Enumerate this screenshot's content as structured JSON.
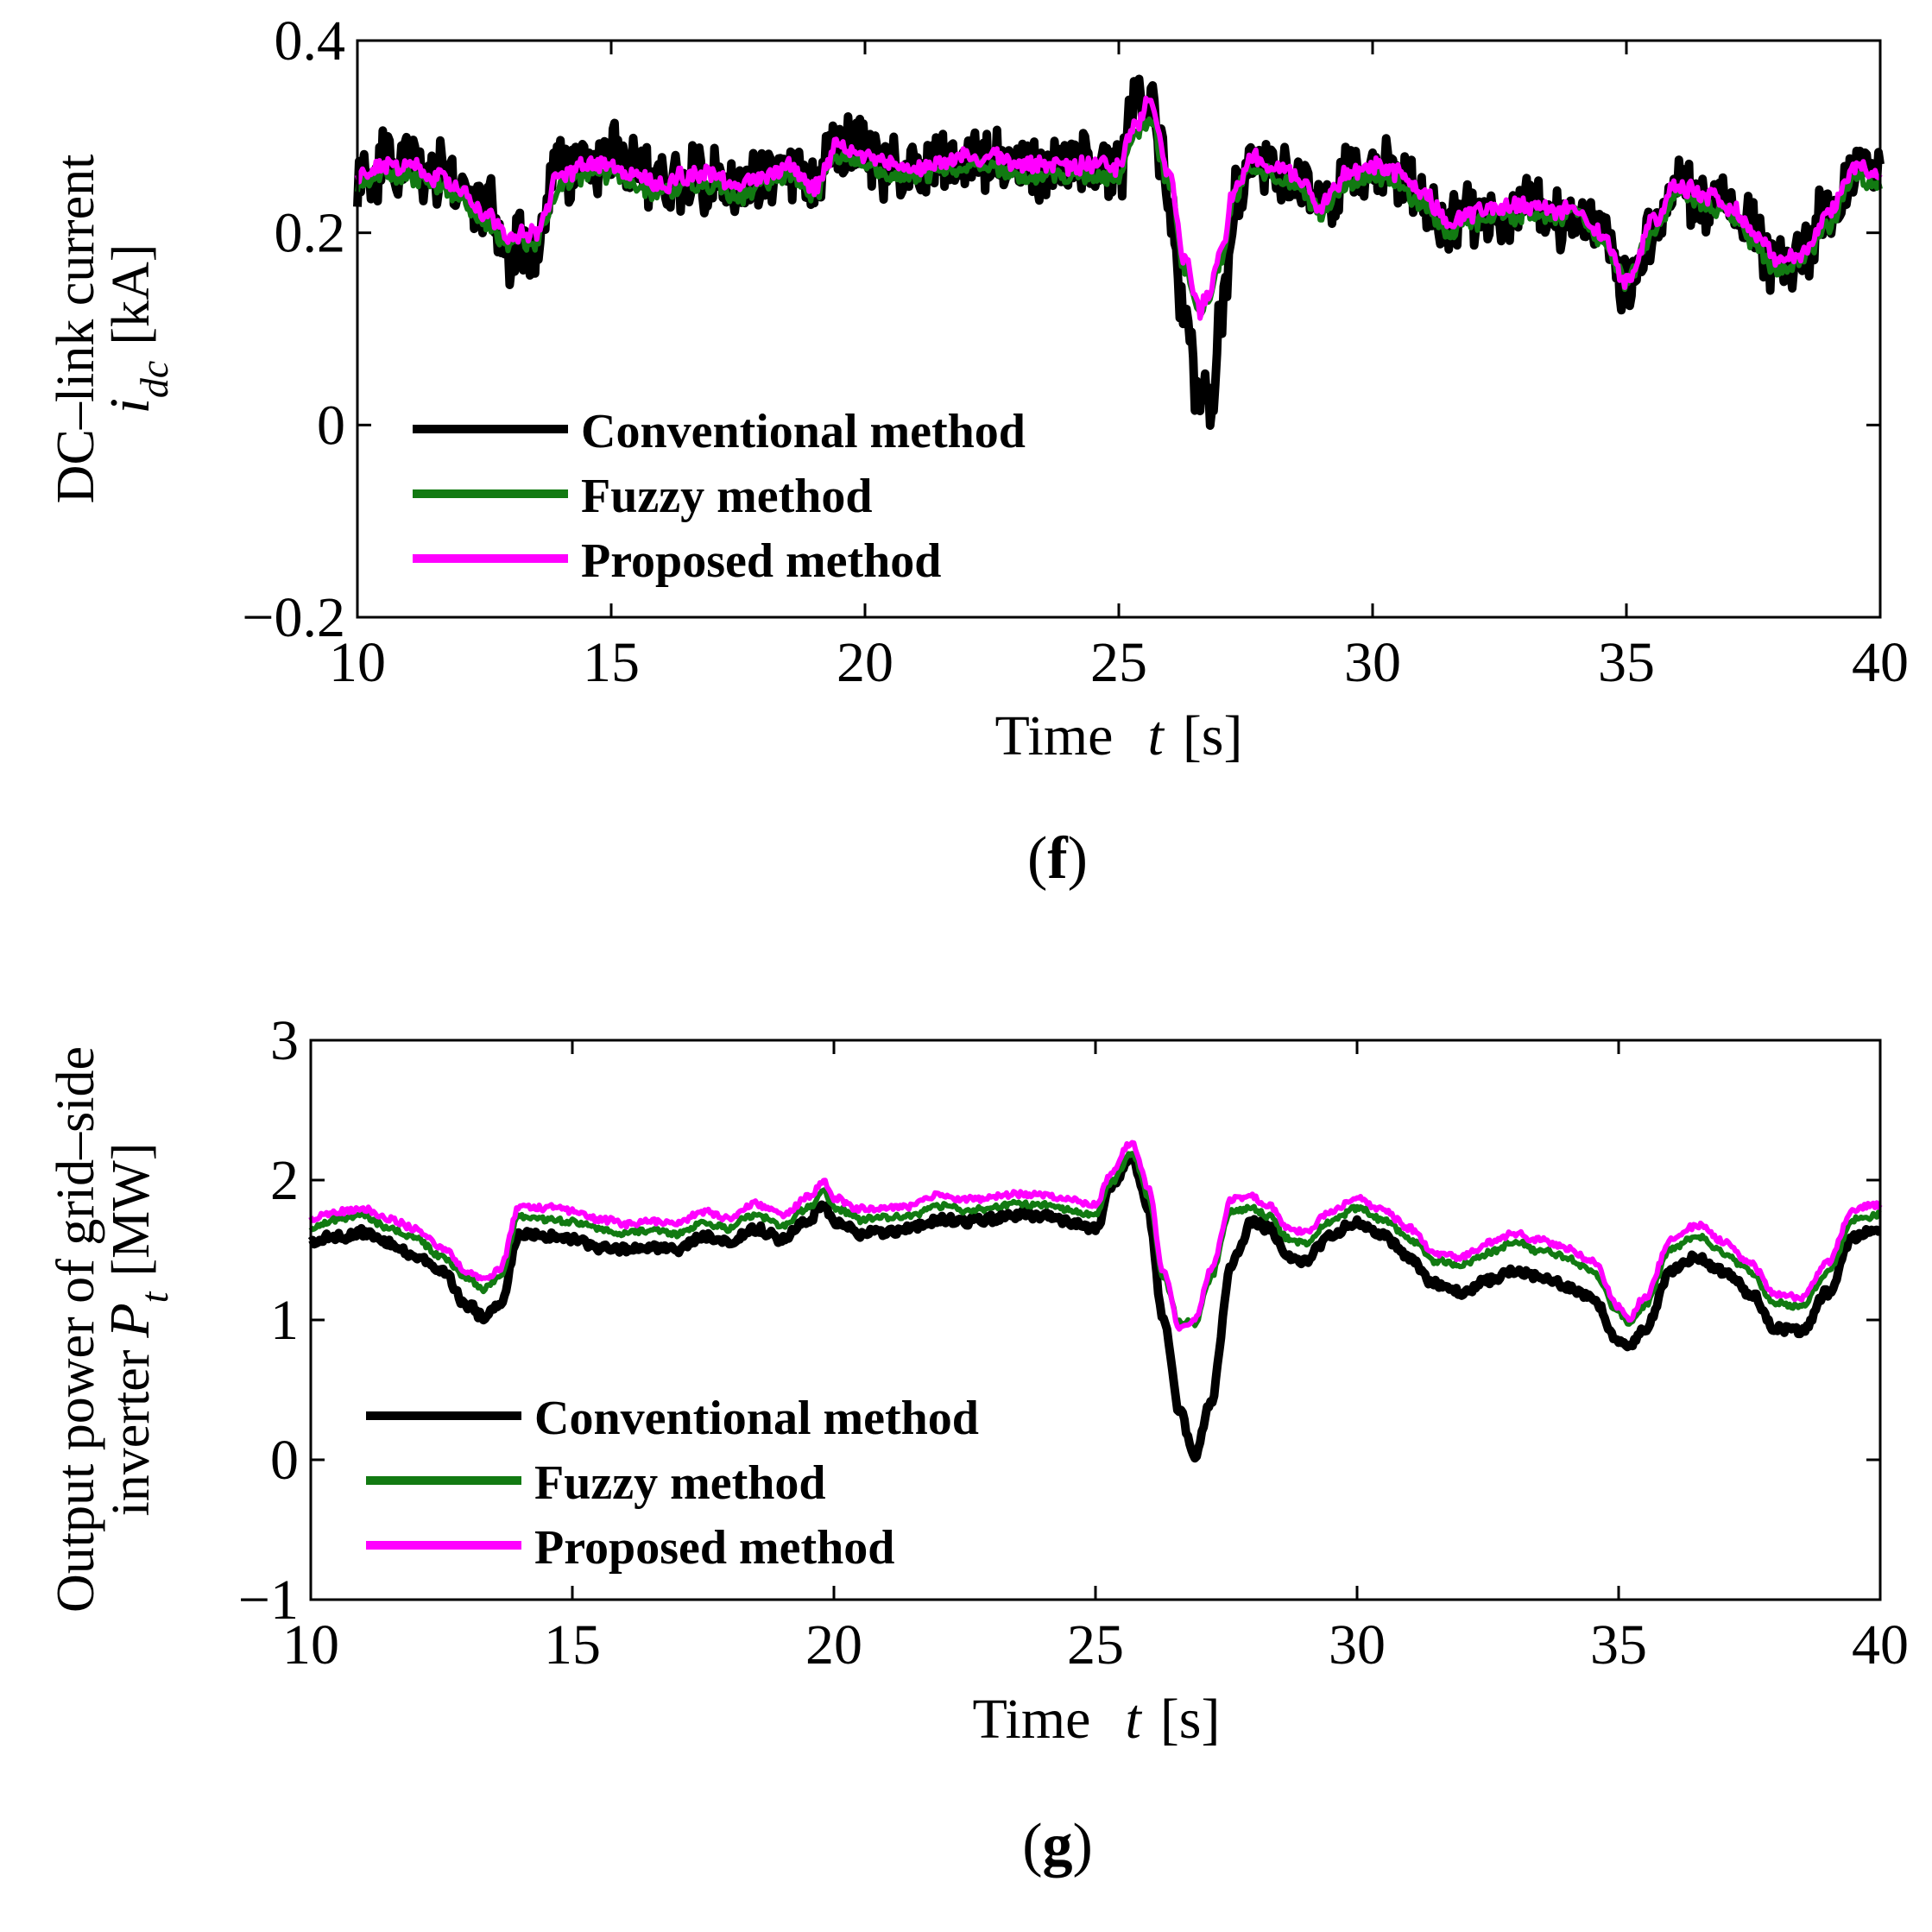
{
  "colors": {
    "conventional": "#000000",
    "fuzzy": "#127a12",
    "proposed": "#ff00ff"
  },
  "chart_data": [
    {
      "type": "line",
      "panel_label": "(f)",
      "panel_letter": "f",
      "xlabel_prefix": "Time",
      "xlabel_var": "t",
      "xlabel_unit": "[s]",
      "ylabel_line1": "DC–link current",
      "ylabel_var": "i",
      "ylabel_sub": "dc",
      "ylabel_unit": "[kA]",
      "xlim": [
        10,
        40
      ],
      "ylim": [
        -0.2,
        0.4
      ],
      "xticks": [
        10,
        15,
        20,
        25,
        30,
        35,
        40
      ],
      "yticks": [
        -0.2,
        0,
        0.2,
        0.4
      ],
      "xtick_labels": [
        "10",
        "15",
        "20",
        "25",
        "30",
        "35",
        "40"
      ],
      "ytick_labels": [
        "−0.2",
        "0",
        "0.2",
        "0.4"
      ],
      "legend_position": "lower-left",
      "x": [
        10,
        10.5,
        11,
        11.5,
        12,
        12.5,
        13,
        13.5,
        14,
        14.5,
        15,
        15.5,
        16,
        16.5,
        17,
        17.5,
        18,
        18.5,
        19,
        19.5,
        20,
        20.5,
        21,
        21.5,
        22,
        22.5,
        23,
        23.5,
        24,
        24.5,
        25,
        25.3,
        25.6,
        26,
        26.3,
        26.6,
        26.8,
        27,
        27.3,
        27.6,
        28,
        28.5,
        29,
        29.5,
        30,
        30.5,
        31,
        31.5,
        32,
        32.5,
        33,
        33.5,
        34,
        34.5,
        35,
        35.5,
        36,
        36.5,
        37,
        37.5,
        38,
        38.5,
        39,
        39.5,
        40
      ],
      "series": [
        {
          "name": "Conventional method",
          "color_key": "conventional",
          "noise": 0.022,
          "values": [
            0.26,
            0.27,
            0.27,
            0.26,
            0.25,
            0.22,
            0.18,
            0.18,
            0.26,
            0.28,
            0.28,
            0.27,
            0.25,
            0.26,
            0.26,
            0.25,
            0.26,
            0.27,
            0.25,
            0.29,
            0.29,
            0.27,
            0.27,
            0.27,
            0.28,
            0.28,
            0.27,
            0.27,
            0.27,
            0.27,
            0.27,
            0.32,
            0.34,
            0.24,
            0.12,
            0.02,
            0.02,
            0.1,
            0.24,
            0.27,
            0.27,
            0.26,
            0.23,
            0.26,
            0.27,
            0.26,
            0.24,
            0.21,
            0.22,
            0.22,
            0.23,
            0.22,
            0.22,
            0.2,
            0.14,
            0.2,
            0.24,
            0.24,
            0.23,
            0.2,
            0.16,
            0.18,
            0.22,
            0.27,
            0.27
          ]
        },
        {
          "name": "Fuzzy method",
          "color_key": "fuzzy",
          "noise": 0.006,
          "values": [
            0.25,
            0.26,
            0.26,
            0.25,
            0.24,
            0.21,
            0.19,
            0.19,
            0.25,
            0.26,
            0.26,
            0.25,
            0.24,
            0.25,
            0.25,
            0.24,
            0.25,
            0.26,
            0.24,
            0.28,
            0.27,
            0.26,
            0.26,
            0.26,
            0.27,
            0.27,
            0.26,
            0.26,
            0.26,
            0.26,
            0.26,
            0.3,
            0.32,
            0.25,
            0.16,
            0.12,
            0.13,
            0.17,
            0.24,
            0.27,
            0.26,
            0.25,
            0.22,
            0.25,
            0.26,
            0.25,
            0.23,
            0.2,
            0.21,
            0.22,
            0.22,
            0.21,
            0.22,
            0.19,
            0.15,
            0.2,
            0.24,
            0.23,
            0.22,
            0.19,
            0.16,
            0.17,
            0.21,
            0.26,
            0.25
          ]
        },
        {
          "name": "Proposed method",
          "color_key": "proposed",
          "noise": 0.006,
          "values": [
            0.26,
            0.27,
            0.27,
            0.26,
            0.25,
            0.22,
            0.2,
            0.2,
            0.26,
            0.27,
            0.27,
            0.26,
            0.25,
            0.26,
            0.26,
            0.25,
            0.26,
            0.27,
            0.25,
            0.29,
            0.28,
            0.27,
            0.27,
            0.27,
            0.28,
            0.28,
            0.27,
            0.27,
            0.27,
            0.27,
            0.27,
            0.31,
            0.34,
            0.26,
            0.17,
            0.12,
            0.14,
            0.18,
            0.25,
            0.28,
            0.27,
            0.26,
            0.23,
            0.26,
            0.27,
            0.26,
            0.24,
            0.21,
            0.22,
            0.23,
            0.23,
            0.22,
            0.23,
            0.2,
            0.15,
            0.21,
            0.25,
            0.24,
            0.23,
            0.2,
            0.17,
            0.18,
            0.22,
            0.27,
            0.26
          ]
        }
      ]
    },
    {
      "type": "line",
      "panel_label": "(g)",
      "panel_letter": "g",
      "xlabel_prefix": "Time",
      "xlabel_var": "t",
      "xlabel_unit": "[s]",
      "ylabel_line1": "Output power of grid–side",
      "ylabel_line2_prefix": "inverter",
      "ylabel_var": "P",
      "ylabel_sub": "t",
      "ylabel_unit": "[MW]",
      "xlim": [
        10,
        40
      ],
      "ylim": [
        -1,
        3
      ],
      "xticks": [
        10,
        15,
        20,
        25,
        30,
        35,
        40
      ],
      "yticks": [
        -1,
        0,
        1,
        2,
        3
      ],
      "xtick_labels": [
        "10",
        "15",
        "20",
        "25",
        "30",
        "35",
        "40"
      ],
      "ytick_labels": [
        "−1",
        "0",
        "1",
        "2",
        "3"
      ],
      "legend_position": "lower-left",
      "x": [
        10,
        10.5,
        11,
        11.5,
        12,
        12.5,
        13,
        13.3,
        13.6,
        14,
        14.5,
        15,
        15.5,
        16,
        16.5,
        17,
        17.5,
        18,
        18.5,
        19,
        19.5,
        19.8,
        20,
        20.5,
        21,
        21.5,
        22,
        22.5,
        23,
        23.5,
        24,
        24.5,
        25,
        25.3,
        25.7,
        26,
        26.3,
        26.6,
        26.9,
        27.2,
        27.6,
        28,
        28.3,
        28.7,
        29,
        29.5,
        30,
        30.5,
        31,
        31.5,
        32,
        32.5,
        33,
        33.5,
        34,
        34.5,
        35,
        35.2,
        35.5,
        36,
        36.5,
        37,
        37.5,
        38,
        38.5,
        39,
        39.5,
        40
      ],
      "series": [
        {
          "name": "Conventional method",
          "color_key": "conventional",
          "noise": 0.02,
          "values": [
            1.55,
            1.6,
            1.62,
            1.55,
            1.45,
            1.35,
            1.1,
            1.02,
            1.1,
            1.62,
            1.6,
            1.58,
            1.52,
            1.5,
            1.52,
            1.5,
            1.6,
            1.55,
            1.65,
            1.58,
            1.7,
            1.82,
            1.7,
            1.62,
            1.63,
            1.65,
            1.72,
            1.7,
            1.72,
            1.75,
            1.75,
            1.7,
            1.65,
            1.95,
            2.15,
            1.8,
            1.0,
            0.35,
            0.02,
            0.4,
            1.4,
            1.7,
            1.65,
            1.45,
            1.42,
            1.6,
            1.7,
            1.6,
            1.45,
            1.25,
            1.2,
            1.28,
            1.35,
            1.3,
            1.25,
            1.15,
            0.85,
            0.8,
            0.95,
            1.35,
            1.45,
            1.35,
            1.2,
            0.95,
            0.92,
            1.2,
            1.6,
            1.65
          ]
        },
        {
          "name": "Fuzzy method",
          "color_key": "fuzzy",
          "noise": 0.015,
          "values": [
            1.65,
            1.72,
            1.74,
            1.65,
            1.58,
            1.45,
            1.3,
            1.22,
            1.3,
            1.75,
            1.72,
            1.7,
            1.65,
            1.62,
            1.64,
            1.62,
            1.7,
            1.66,
            1.76,
            1.68,
            1.8,
            1.92,
            1.8,
            1.72,
            1.73,
            1.75,
            1.82,
            1.78,
            1.8,
            1.83,
            1.83,
            1.78,
            1.75,
            1.98,
            2.2,
            1.9,
            1.3,
            0.98,
            0.98,
            1.3,
            1.78,
            1.8,
            1.75,
            1.58,
            1.55,
            1.7,
            1.8,
            1.72,
            1.58,
            1.42,
            1.4,
            1.48,
            1.55,
            1.5,
            1.45,
            1.35,
            1.05,
            0.98,
            1.1,
            1.5,
            1.6,
            1.48,
            1.35,
            1.12,
            1.1,
            1.35,
            1.72,
            1.75
          ]
        },
        {
          "name": "Proposed method",
          "color_key": "proposed",
          "noise": 0.015,
          "values": [
            1.72,
            1.78,
            1.8,
            1.72,
            1.65,
            1.52,
            1.35,
            1.28,
            1.36,
            1.82,
            1.8,
            1.78,
            1.72,
            1.69,
            1.71,
            1.69,
            1.78,
            1.73,
            1.83,
            1.75,
            1.88,
            2.0,
            1.87,
            1.79,
            1.8,
            1.82,
            1.9,
            1.86,
            1.88,
            1.9,
            1.9,
            1.86,
            1.82,
            2.05,
            2.28,
            1.95,
            1.35,
            0.95,
            1.0,
            1.35,
            1.86,
            1.88,
            1.82,
            1.65,
            1.62,
            1.78,
            1.87,
            1.79,
            1.65,
            1.48,
            1.46,
            1.55,
            1.62,
            1.57,
            1.52,
            1.42,
            1.1,
            1.02,
            1.16,
            1.58,
            1.68,
            1.56,
            1.42,
            1.18,
            1.16,
            1.42,
            1.8,
            1.82
          ]
        }
      ]
    }
  ]
}
